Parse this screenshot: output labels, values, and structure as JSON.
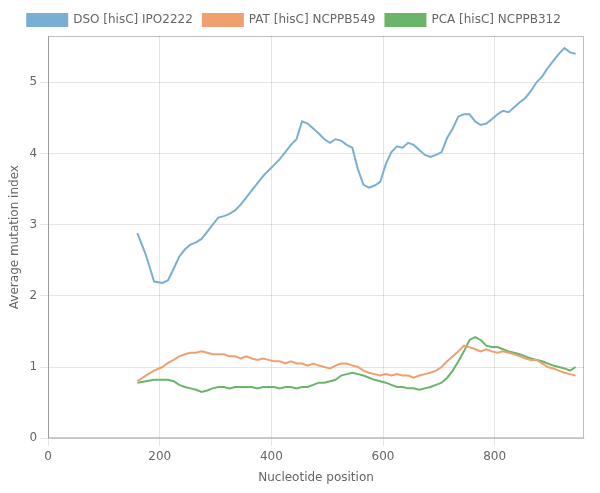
{
  "chart_data": {
    "type": "line",
    "xlabel": "Nucleotide position",
    "ylabel": "Average mutation index",
    "xlim": [
      0,
      960
    ],
    "ylim": [
      0,
      5.65
    ],
    "xticks": [
      0,
      200,
      400,
      600,
      800
    ],
    "yticks": [
      0,
      1,
      2,
      3,
      4,
      5
    ],
    "grid": true,
    "legend": "top",
    "x": [
      160,
      175,
      190,
      205,
      215,
      225,
      235,
      245,
      255,
      265,
      275,
      285,
      295,
      305,
      315,
      325,
      335,
      345,
      355,
      365,
      375,
      385,
      395,
      405,
      415,
      425,
      435,
      445,
      455,
      465,
      475,
      485,
      495,
      505,
      515,
      525,
      535,
      545,
      555,
      565,
      575,
      585,
      595,
      605,
      615,
      625,
      635,
      645,
      655,
      665,
      675,
      685,
      695,
      705,
      715,
      725,
      735,
      745,
      755,
      765,
      775,
      785,
      795,
      805,
      815,
      825,
      835,
      845,
      855,
      865,
      875,
      885,
      895,
      905,
      915,
      925,
      935,
      945
    ],
    "series": [
      {
        "name": "DSO [hisC] IPO2222",
        "color": "#7aafd4",
        "values": [
          2.88,
          2.58,
          2.2,
          2.18,
          2.22,
          2.38,
          2.55,
          2.65,
          2.72,
          2.75,
          2.8,
          2.9,
          3.0,
          3.1,
          3.12,
          3.15,
          3.2,
          3.28,
          3.38,
          3.48,
          3.58,
          3.68,
          3.76,
          3.84,
          3.92,
          4.02,
          4.12,
          4.2,
          4.45,
          4.42,
          4.35,
          4.28,
          4.2,
          4.15,
          4.2,
          4.18,
          4.12,
          4.08,
          3.78,
          3.56,
          3.52,
          3.55,
          3.6,
          3.85,
          4.02,
          4.1,
          4.08,
          4.15,
          4.12,
          4.05,
          3.98,
          3.95,
          3.98,
          4.02,
          4.22,
          4.35,
          4.52,
          4.55,
          4.55,
          4.45,
          4.4,
          4.42,
          4.48,
          4.55,
          4.6,
          4.58,
          4.65,
          4.72,
          4.78,
          4.88,
          5.0,
          5.08,
          5.2,
          5.3,
          5.4,
          5.48,
          5.42,
          5.4
        ]
      },
      {
        "name": "PAT [hisC] NCPPB549",
        "color": "#f0a070",
        "values": [
          0.8,
          0.88,
          0.95,
          1.0,
          1.06,
          1.1,
          1.15,
          1.18,
          1.2,
          1.2,
          1.22,
          1.2,
          1.18,
          1.18,
          1.18,
          1.15,
          1.15,
          1.12,
          1.15,
          1.12,
          1.1,
          1.12,
          1.1,
          1.08,
          1.08,
          1.05,
          1.08,
          1.05,
          1.05,
          1.02,
          1.05,
          1.02,
          1.0,
          0.98,
          1.02,
          1.05,
          1.05,
          1.02,
          1.0,
          0.95,
          0.92,
          0.9,
          0.88,
          0.9,
          0.88,
          0.9,
          0.88,
          0.88,
          0.85,
          0.88,
          0.9,
          0.92,
          0.95,
          1.0,
          1.08,
          1.15,
          1.22,
          1.3,
          1.28,
          1.25,
          1.22,
          1.25,
          1.22,
          1.2,
          1.22,
          1.2,
          1.18,
          1.15,
          1.12,
          1.1,
          1.1,
          1.05,
          1.0,
          0.98,
          0.95,
          0.92,
          0.9,
          0.88
        ]
      },
      {
        "name": "PCA [hisC] NCPPB312",
        "color": "#6ab56a",
        "values": [
          0.78,
          0.8,
          0.82,
          0.82,
          0.82,
          0.8,
          0.75,
          0.72,
          0.7,
          0.68,
          0.65,
          0.67,
          0.7,
          0.72,
          0.72,
          0.7,
          0.72,
          0.72,
          0.72,
          0.72,
          0.7,
          0.72,
          0.72,
          0.72,
          0.7,
          0.72,
          0.72,
          0.7,
          0.72,
          0.72,
          0.75,
          0.78,
          0.78,
          0.8,
          0.82,
          0.88,
          0.9,
          0.92,
          0.9,
          0.88,
          0.85,
          0.82,
          0.8,
          0.78,
          0.75,
          0.72,
          0.72,
          0.7,
          0.7,
          0.68,
          0.7,
          0.72,
          0.75,
          0.78,
          0.85,
          0.95,
          1.08,
          1.22,
          1.38,
          1.42,
          1.38,
          1.3,
          1.28,
          1.28,
          1.25,
          1.22,
          1.2,
          1.18,
          1.15,
          1.12,
          1.1,
          1.08,
          1.05,
          1.02,
          1.0,
          0.98,
          0.95,
          1.0
        ]
      }
    ]
  }
}
